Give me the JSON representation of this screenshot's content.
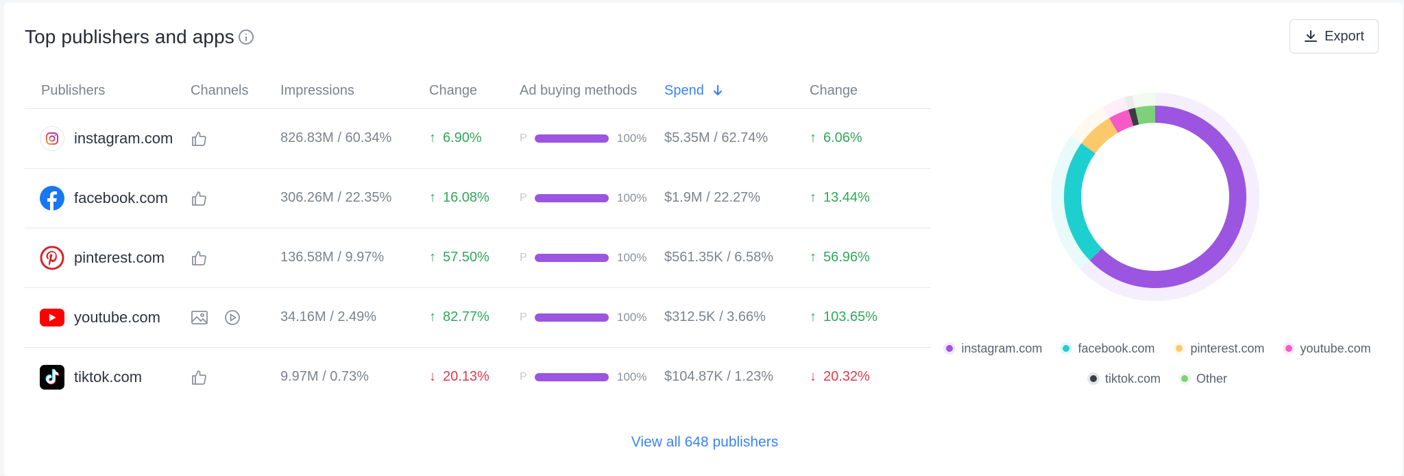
{
  "header": {
    "title": "Top publishers and apps",
    "export_label": "Export"
  },
  "table": {
    "columns": [
      "Publishers",
      "Channels",
      "Impressions",
      "Change",
      "Ad buying methods",
      "Spend",
      "Change"
    ],
    "sorted_column": "Spend",
    "rows": [
      {
        "publisher": "instagram.com",
        "icon": "instagram-logo",
        "channels": [
          "social-like-icon"
        ],
        "impressions": "826.83M / 60.34%",
        "change": "6.90%",
        "change_dir": "up",
        "method": "P",
        "method_pct": "100%",
        "method_fill": 1.0,
        "spend": "$5.35M / 62.74%",
        "spend_change": "6.06%",
        "spend_change_dir": "up"
      },
      {
        "publisher": "facebook.com",
        "icon": "facebook-logo",
        "channels": [
          "social-like-icon"
        ],
        "impressions": "306.26M / 22.35%",
        "change": "16.08%",
        "change_dir": "up",
        "method": "P",
        "method_pct": "100%",
        "method_fill": 1.0,
        "spend": "$1.9M / 22.27%",
        "spend_change": "13.44%",
        "spend_change_dir": "up"
      },
      {
        "publisher": "pinterest.com",
        "icon": "pinterest-logo",
        "channels": [
          "social-like-icon"
        ],
        "impressions": "136.58M / 9.97%",
        "change": "57.50%",
        "change_dir": "up",
        "method": "P",
        "method_pct": "100%",
        "method_fill": 1.0,
        "spend": "$561.35K / 6.58%",
        "spend_change": "56.96%",
        "spend_change_dir": "up"
      },
      {
        "publisher": "youtube.com",
        "icon": "youtube-logo",
        "channels": [
          "display-image-icon",
          "video-play-icon"
        ],
        "impressions": "34.16M / 2.49%",
        "change": "82.77%",
        "change_dir": "up",
        "method": "P",
        "method_pct": "100%",
        "method_fill": 1.0,
        "spend": "$312.5K / 3.66%",
        "spend_change": "103.65%",
        "spend_change_dir": "up"
      },
      {
        "publisher": "tiktok.com",
        "icon": "tiktok-logo",
        "channels": [
          "social-like-icon"
        ],
        "impressions": "9.97M / 0.73%",
        "change": "20.13%",
        "change_dir": "down",
        "method": "P",
        "method_pct": "100%",
        "method_fill": 1.0,
        "spend": "$104.87K / 1.23%",
        "spend_change": "20.32%",
        "spend_change_dir": "down"
      }
    ]
  },
  "footer": {
    "view_all": "View all 648 publishers"
  },
  "colors": {
    "accent": "#3b82f6",
    "up": "#2fa85a",
    "down": "#e0384b",
    "bar": "#9b55e0"
  },
  "chart_data": {
    "type": "pie",
    "categories": [
      "instagram.com",
      "facebook.com",
      "pinterest.com",
      "youtube.com",
      "tiktok.com",
      "Other"
    ],
    "values": [
      62.74,
      22.27,
      6.58,
      3.66,
      1.23,
      3.52
    ],
    "colors": [
      "#9b55e0",
      "#1ecfcf",
      "#fcc96a",
      "#f55ac5",
      "#3a3d45",
      "#7ed07a"
    ],
    "legend_position": "bottom"
  }
}
